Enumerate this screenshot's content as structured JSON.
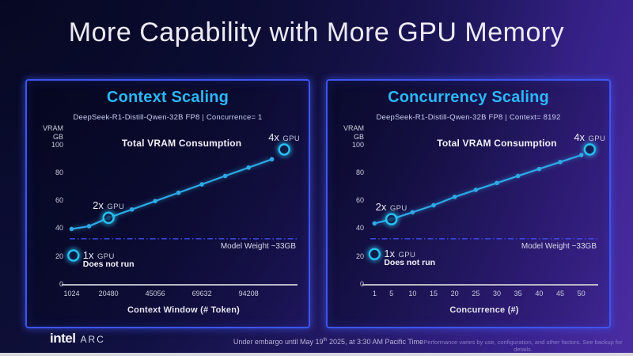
{
  "slide": {
    "title": "More Capability with More GPU Memory"
  },
  "footer": {
    "logo": {
      "intel": "intel",
      "arc": "ARC"
    },
    "embargo": {
      "pre": "Under embargo until May 19",
      "sup": "th",
      "post": " 2025, at 3:30 AM Pacific Time"
    },
    "disclaimer": "Performance varies by use, configuration, and other factors. See backup for details."
  },
  "colors": {
    "accent_cyan": "#2db7f7",
    "line": "#2fa9e8",
    "ring": "#27c2f2",
    "ring_glow": "#2fd4ff",
    "panel_border": "#3d55ef",
    "hline": "#3b4ef0",
    "axis": "#b9b9c4"
  },
  "chart_data": [
    {
      "type": "line",
      "title": "Context Scaling",
      "subtitle": "DeepSeek-R1-Distill-Qwen-32B FP8  |  Concurrence= 1",
      "ylabel_lines": [
        "VRAM",
        "GB"
      ],
      "xlabel": "Context Window (# Token)",
      "ylim": [
        0,
        110
      ],
      "yticks": [
        100,
        80,
        60,
        40,
        20,
        0
      ],
      "xlim": [
        0,
        120000
      ],
      "xticks": [
        1024,
        20480,
        45056,
        69632,
        94208
      ],
      "grid": false,
      "series_label": "Total VRAM Consumption",
      "series_label_anchor": {
        "x": 59000,
        "y": 101
      },
      "x": [
        1024,
        10240,
        20480,
        32768,
        45056,
        57344,
        69632,
        81920,
        94208,
        106496
      ],
      "values": [
        40,
        42,
        48,
        54,
        60,
        66,
        72,
        78,
        84,
        90
      ],
      "hline": {
        "value": 33,
        "label": "Model Weight ~33GB"
      },
      "markers": [
        {
          "big": "2x",
          "small": "GPU",
          "x": 20480,
          "y": 48,
          "label_pos": "above"
        },
        {
          "big": "4x",
          "small": "GPU",
          "x": 113000,
          "y": 97,
          "label_pos": "above"
        },
        {
          "big": "1x",
          "small": "GPU",
          "x": 2000,
          "y": 21,
          "label_pos": "right",
          "sub": "Does not run"
        }
      ]
    },
    {
      "type": "line",
      "title": "Concurrency Scaling",
      "subtitle": "DeepSeek-R1-Distill-Qwen-32B FP8  |  Context= 8192",
      "ylabel_lines": [
        "VRAM",
        "GB"
      ],
      "xlabel": "Concurrence (#)",
      "ylim": [
        0,
        110
      ],
      "yticks": [
        100,
        80,
        60,
        40,
        20,
        0
      ],
      "xlim": [
        0,
        54
      ],
      "xticks": [
        1,
        5,
        10,
        15,
        20,
        25,
        30,
        35,
        40,
        45,
        50
      ],
      "grid": false,
      "series_label": "Total VRAM Consumption",
      "series_label_anchor": {
        "x": 30,
        "y": 101
      },
      "x": [
        1,
        5,
        10,
        15,
        20,
        25,
        30,
        35,
        40,
        45,
        50
      ],
      "values": [
        44,
        47,
        52,
        57,
        63,
        68,
        73,
        78,
        83,
        88,
        93
      ],
      "hline": {
        "value": 33,
        "label": "Model Weight ~33GB"
      },
      "markers": [
        {
          "big": "2x",
          "small": "GPU",
          "x": 5,
          "y": 47,
          "label_pos": "above"
        },
        {
          "big": "4x",
          "small": "GPU",
          "x": 52,
          "y": 97,
          "label_pos": "above"
        },
        {
          "big": "1x",
          "small": "GPU",
          "x": 1,
          "y": 22,
          "label_pos": "right",
          "sub": "Does not run"
        }
      ]
    }
  ]
}
